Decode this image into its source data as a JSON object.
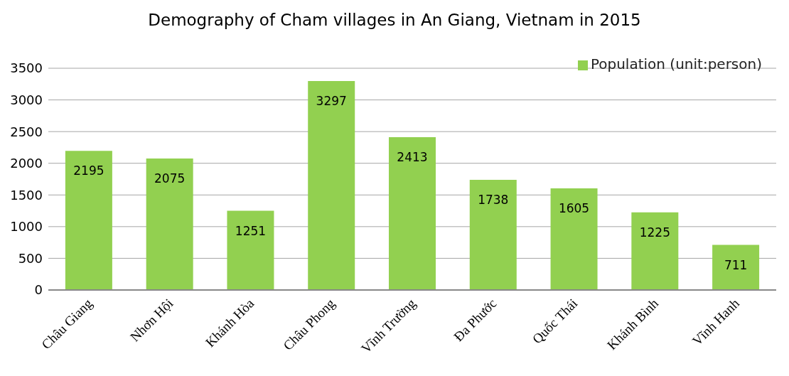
{
  "chart_data": {
    "type": "bar",
    "title": "Demography of Cham villages in An Giang, Vietnam in 2015",
    "categories": [
      "Châu Giang",
      "Nhơn Hội",
      "Khánh Hòa",
      "Châu Phong",
      "Vĩnh Trường",
      "Đa Phước",
      "Quốc Thái",
      "Khánh Bình",
      "Vĩnh Hanh"
    ],
    "series": [
      {
        "name": "Population (unit:person)",
        "color": "#92d050",
        "values": [
          2195,
          2075,
          1251,
          3297,
          2413,
          1738,
          1605,
          1225,
          711
        ]
      }
    ],
    "ylim": [
      0,
      3500
    ],
    "yticks": [
      0,
      500,
      1000,
      1500,
      2000,
      2500,
      3000,
      3500
    ],
    "grid": "y",
    "legend": "top right",
    "data_labels": true
  }
}
